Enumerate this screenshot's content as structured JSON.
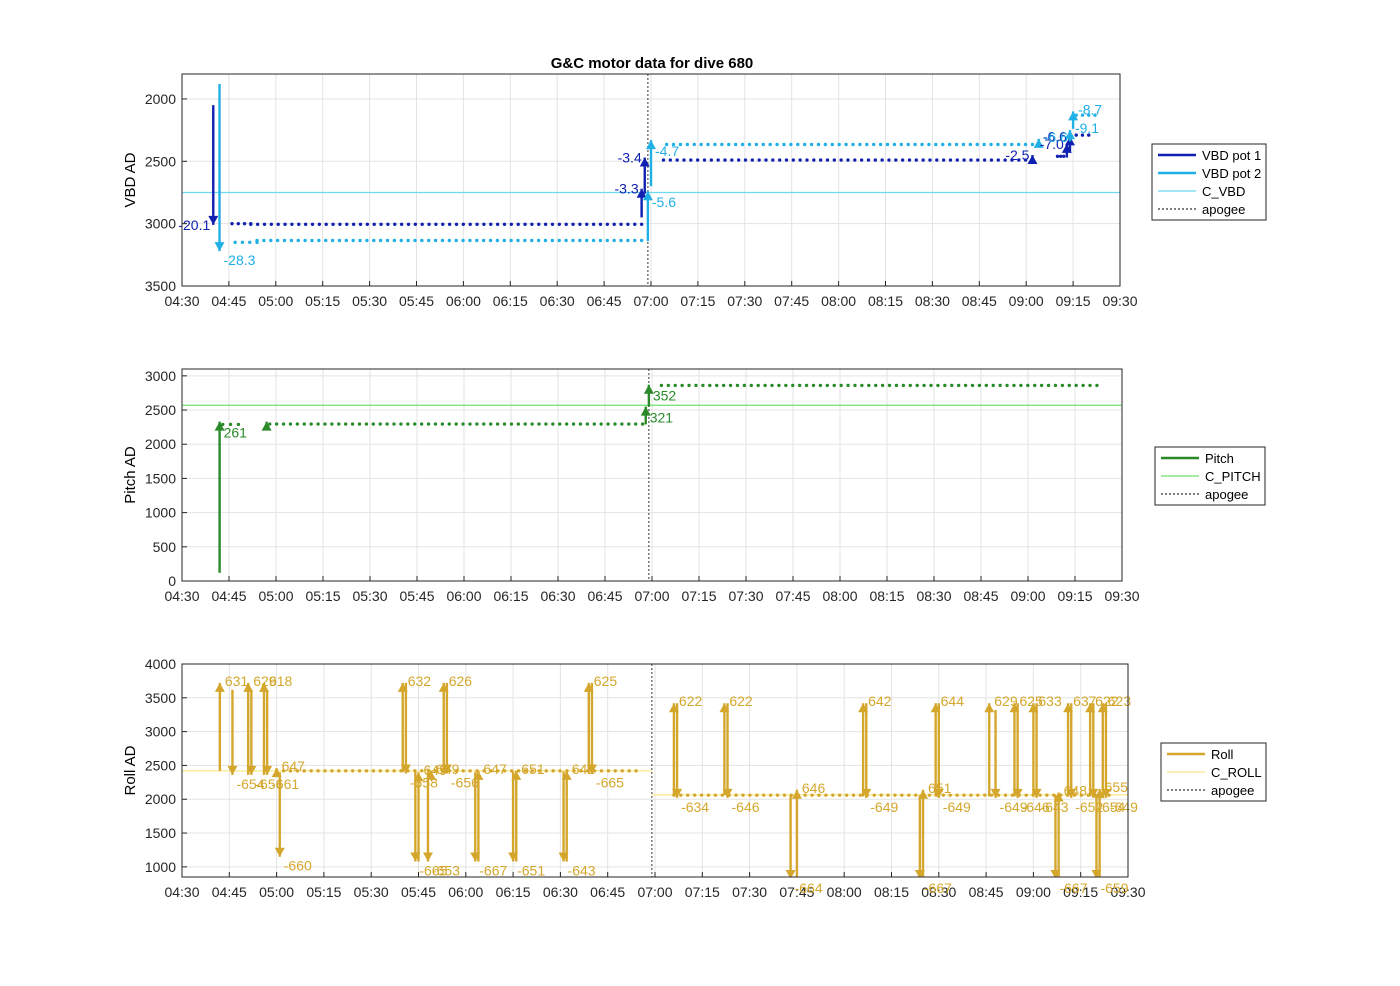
{
  "figure": {
    "title": "G&C motor data for dive 680"
  },
  "chart_data": [
    {
      "type": "line",
      "ylabel": "VBD AD",
      "xlim": [
        "04:30",
        "09:30"
      ],
      "xticks": [
        "04:30",
        "04:45",
        "05:00",
        "05:15",
        "05:30",
        "05:45",
        "06:00",
        "06:15",
        "06:30",
        "06:45",
        "07:00",
        "07:15",
        "07:30",
        "07:45",
        "08:00",
        "08:15",
        "08:30",
        "08:45",
        "09:00",
        "09:15",
        "09:30"
      ],
      "ylim": [
        1800,
        3500
      ],
      "yreverse": true,
      "yticks": [
        2000,
        2500,
        3000,
        3500
      ],
      "grid": true,
      "legend_position": "right",
      "apogee": "06:59",
      "refs": [
        {
          "name": "C_VBD",
          "y": 2750,
          "color": "#6fd8ee"
        }
      ],
      "series": [
        {
          "name": "VBD pot 1",
          "color": "#1020b0",
          "dots": [
            {
              "x0": "04:46",
              "x1": "04:52",
              "y": 3000
            },
            {
              "x0": "04:52",
              "x1": "06:57",
              "y": 3005
            },
            {
              "x0": "07:04",
              "x1": "09:02",
              "y": 2490
            },
            {
              "x0": "09:10",
              "x1": "09:12",
              "y": 2460
            },
            {
              "x0": "09:16",
              "x1": "09:20",
              "y": 2290
            }
          ],
          "moves": [
            {
              "t": "04:40",
              "from": 2050,
              "to": 3010,
              "label": "-20.1",
              "pos": "left"
            },
            {
              "t": "06:57",
              "from": 2950,
              "to": 2720,
              "label": "-3.3",
              "pos": "left"
            },
            {
              "t": "06:58",
              "from": 2760,
              "to": 2470,
              "label": "-3.4",
              "pos": "left"
            },
            {
              "t": "09:02",
              "from": 2490,
              "to": 2450,
              "label": "-2.5",
              "pos": "left"
            },
            {
              "t": "09:13",
              "from": 2470,
              "to": 2360,
              "label": "-7.0",
              "pos": "left"
            },
            {
              "t": "09:14",
              "from": 2420,
              "to": 2300,
              "label": "-6.6",
              "pos": "left"
            }
          ]
        },
        {
          "name": "VBD pot 2",
          "color": "#20b0e6",
          "dots": [
            {
              "x0": "04:47",
              "x1": "04:54",
              "y": 3150
            },
            {
              "x0": "04:54",
              "x1": "06:57",
              "y": 3135
            },
            {
              "x0": "07:05",
              "x1": "09:02",
              "y": 2365
            },
            {
              "x0": "09:16",
              "x1": "09:22",
              "y": 2130
            }
          ],
          "moves": [
            {
              "t": "04:42",
              "from": 1880,
              "to": 3220,
              "label": "-28.3",
              "pos": "below-right"
            },
            {
              "t": "06:59",
              "from": 3140,
              "to": 2740,
              "label": "-5.6",
              "pos": "below-right"
            },
            {
              "t": "07:00",
              "from": 2700,
              "to": 2330,
              "label": "-4.7",
              "pos": "below-right"
            },
            {
              "t": "09:04",
              "from": 2370,
              "to": 2320,
              "label": "-6.6",
              "pos": "right"
            },
            {
              "t": "09:14",
              "from": 2340,
              "to": 2250,
              "label": "-9.1",
              "pos": "right"
            },
            {
              "t": "09:15",
              "from": 2240,
              "to": 2100,
              "label": "-8.7",
              "pos": "right"
            }
          ]
        }
      ]
    },
    {
      "type": "line",
      "ylabel": "Pitch AD",
      "xlim": [
        "04:30",
        "09:30"
      ],
      "xticks": [
        "04:30",
        "04:45",
        "05:00",
        "05:15",
        "05:30",
        "05:45",
        "06:00",
        "06:15",
        "06:30",
        "06:45",
        "07:00",
        "07:15",
        "07:30",
        "07:45",
        "08:00",
        "08:15",
        "08:30",
        "08:45",
        "09:00",
        "09:15",
        "09:30"
      ],
      "ylim": [
        0,
        3100
      ],
      "yreverse": false,
      "yticks": [
        0,
        500,
        1000,
        1500,
        2000,
        2500,
        3000
      ],
      "grid": true,
      "legend_position": "right",
      "apogee": "06:59",
      "refs": [
        {
          "name": "C_PITCH",
          "y": 2570,
          "color": "#6ee06e"
        }
      ],
      "series": [
        {
          "name": "Pitch",
          "color": "#2a8a2a",
          "dots": [
            {
              "x0": "04:43",
              "x1": "04:48",
              "y": 2290
            },
            {
              "x0": "04:58",
              "x1": "06:57",
              "y": 2295
            },
            {
              "x0": "07:03",
              "x1": "09:22",
              "y": 2860
            }
          ],
          "moves": [
            {
              "t": "04:42",
              "from": 120,
              "to": 2330,
              "label": "261",
              "pos": "below-right"
            },
            {
              "t": "04:57",
              "from": 2300,
              "to": 2330,
              "label": "",
              "pos": "right"
            },
            {
              "t": "06:58",
              "from": 2290,
              "to": 2550,
              "label": "321",
              "pos": "below-right"
            },
            {
              "t": "06:59",
              "from": 2550,
              "to": 2870,
              "label": "352",
              "pos": "below-right"
            }
          ]
        }
      ]
    },
    {
      "type": "line",
      "ylabel": "Roll AD",
      "xlim": [
        "04:30",
        "09:30"
      ],
      "xticks": [
        "04:30",
        "04:45",
        "05:00",
        "05:15",
        "05:30",
        "05:45",
        "06:00",
        "06:15",
        "06:30",
        "06:45",
        "07:00",
        "07:15",
        "07:30",
        "07:45",
        "08:00",
        "08:15",
        "08:30",
        "08:45",
        "09:00",
        "09:15",
        "09:30"
      ],
      "ylim": [
        850,
        4000
      ],
      "yreverse": false,
      "yticks": [
        1000,
        1500,
        2000,
        2500,
        3000,
        3500,
        4000
      ],
      "grid": true,
      "legend_position": "right",
      "apogee": "06:59",
      "refs": [
        {
          "name": "C_ROLL",
          "y": 2420,
          "color": "#f8e88a",
          "x0": "04:30",
          "x1": "06:59"
        },
        {
          "name": "",
          "y": 2065,
          "color": "#f8e88a",
          "x0": "06:59",
          "x1": "09:30"
        }
      ],
      "series": [
        {
          "name": "Roll",
          "color": "#d4a72c",
          "dots": [
            {
              "x0": "05:00",
              "x1": "06:54",
              "y": 2420
            },
            {
              "x0": "07:06",
              "x1": "09:24",
              "y": 2060
            }
          ],
          "moves": [
            {
              "t": "04:42",
              "from": 2420,
              "to": 3720,
              "label": "631",
              "pos": "right"
            },
            {
              "t": "04:46",
              "from": 3620,
              "to": 2360,
              "label": "-654",
              "pos": "below-right"
            },
            {
              "t": "04:51",
              "from": 2360,
              "to": 3720,
              "label": "629",
              "pos": "right"
            },
            {
              "t": "04:52",
              "from": 3620,
              "to": 2360,
              "label": "-656",
              "pos": "below-right"
            },
            {
              "t": "04:56",
              "from": 2360,
              "to": 3720,
              "label": "618",
              "pos": "right"
            },
            {
              "t": "04:57",
              "from": 3620,
              "to": 2360,
              "label": "-661",
              "pos": "below-right"
            },
            {
              "t": "05:00",
              "from": 2400,
              "to": 2460,
              "label": "647",
              "pos": "right"
            },
            {
              "t": "05:01",
              "from": 2400,
              "to": 1150,
              "label": "-660",
              "pos": "below-right"
            },
            {
              "t": "05:40",
              "from": 2400,
              "to": 3720,
              "label": "632",
              "pos": "right"
            },
            {
              "t": "05:41",
              "from": 3720,
              "to": 2380,
              "label": "-658",
              "pos": "below-right"
            },
            {
              "t": "05:44",
              "from": 2410,
              "to": 1080,
              "label": "-665",
              "pos": "below-right"
            },
            {
              "t": "05:45",
              "from": 1080,
              "to": 2400,
              "label": "649",
              "pos": "right"
            },
            {
              "t": "05:48",
              "from": 2400,
              "to": 1080,
              "label": "-653",
              "pos": "below-right"
            },
            {
              "t": "05:49",
              "from": 2400,
              "to": 2420,
              "label": "649",
              "pos": "right"
            },
            {
              "t": "05:53",
              "from": 2380,
              "to": 3720,
              "label": "626",
              "pos": "right"
            },
            {
              "t": "05:54",
              "from": 3720,
              "to": 2380,
              "label": "-656",
              "pos": "below-right"
            },
            {
              "t": "06:03",
              "from": 2400,
              "to": 1080,
              "label": "-667",
              "pos": "below-right"
            },
            {
              "t": "06:04",
              "from": 1080,
              "to": 2420,
              "label": "647",
              "pos": "right"
            },
            {
              "t": "06:15",
              "from": 2410,
              "to": 1080,
              "label": "-651",
              "pos": "below-right"
            },
            {
              "t": "06:16",
              "from": 1080,
              "to": 2420,
              "label": "651",
              "pos": "right"
            },
            {
              "t": "06:31",
              "from": 2410,
              "to": 1080,
              "label": "-643",
              "pos": "below-right"
            },
            {
              "t": "06:32",
              "from": 1080,
              "to": 2420,
              "label": "642",
              "pos": "right"
            },
            {
              "t": "06:39",
              "from": 2400,
              "to": 3720,
              "label": "625",
              "pos": "right"
            },
            {
              "t": "06:40",
              "from": 3720,
              "to": 2380,
              "label": "-665",
              "pos": "below-right"
            },
            {
              "t": "07:06",
              "from": 2060,
              "to": 3420,
              "label": "622",
              "pos": "right"
            },
            {
              "t": "07:07",
              "from": 3420,
              "to": 2020,
              "label": "-634",
              "pos": "below-right"
            },
            {
              "t": "07:22",
              "from": 2060,
              "to": 3420,
              "label": "622",
              "pos": "right"
            },
            {
              "t": "07:23",
              "from": 3420,
              "to": 2020,
              "label": "-646",
              "pos": "below-right"
            },
            {
              "t": "07:43",
              "from": 2060,
              "to": 820,
              "label": "-664",
              "pos": "below-right"
            },
            {
              "t": "07:45",
              "from": 820,
              "to": 2140,
              "label": "646",
              "pos": "right"
            },
            {
              "t": "08:06",
              "from": 2040,
              "to": 3420,
              "label": "642",
              "pos": "right"
            },
            {
              "t": "08:07",
              "from": 3420,
              "to": 2020,
              "label": "-649",
              "pos": "below-right"
            },
            {
              "t": "08:24",
              "from": 2060,
              "to": 820,
              "label": "-667",
              "pos": "below-right"
            },
            {
              "t": "08:25",
              "from": 820,
              "to": 2140,
              "label": "651",
              "pos": "right"
            },
            {
              "t": "08:29",
              "from": 2040,
              "to": 3420,
              "label": "644",
              "pos": "right"
            },
            {
              "t": "08:30",
              "from": 3420,
              "to": 2020,
              "label": "-649",
              "pos": "below-right"
            },
            {
              "t": "08:46",
              "from": 2040,
              "to": 3420,
              "label": "629",
              "pos": "right"
            },
            {
              "t": "08:48",
              "from": 3320,
              "to": 2020,
              "label": "-649",
              "pos": "below-right"
            },
            {
              "t": "08:54",
              "from": 2040,
              "to": 3420,
              "label": "625",
              "pos": "right"
            },
            {
              "t": "08:55",
              "from": 3420,
              "to": 2020,
              "label": "-646",
              "pos": "below-right"
            },
            {
              "t": "09:00",
              "from": 2040,
              "to": 3420,
              "label": "633",
              "pos": "right"
            },
            {
              "t": "09:01",
              "from": 3420,
              "to": 2020,
              "label": "-643",
              "pos": "below-right"
            },
            {
              "t": "09:07",
              "from": 2060,
              "to": 820,
              "label": "-667",
              "pos": "below-right"
            },
            {
              "t": "09:08",
              "from": 820,
              "to": 2100,
              "label": "648",
              "pos": "right"
            },
            {
              "t": "09:11",
              "from": 2040,
              "to": 3420,
              "label": "637",
              "pos": "right"
            },
            {
              "t": "09:12",
              "from": 3420,
              "to": 2020,
              "label": "-652",
              "pos": "below-right"
            },
            {
              "t": "09:18",
              "from": 2040,
              "to": 3420,
              "label": "622",
              "pos": "right"
            },
            {
              "t": "09:19",
              "from": 3420,
              "to": 2020,
              "label": "-654",
              "pos": "below-right"
            },
            {
              "t": "09:20",
              "from": 2060,
              "to": 820,
              "label": "-659",
              "pos": "below-right"
            },
            {
              "t": "09:21",
              "from": 820,
              "to": 2150,
              "label": "655",
              "pos": "right"
            },
            {
              "t": "09:22",
              "from": 2040,
              "to": 3420,
              "label": "623",
              "pos": "right"
            },
            {
              "t": "09:23",
              "from": 3420,
              "to": 2020,
              "label": "-649",
              "pos": "below-right"
            }
          ]
        }
      ]
    }
  ],
  "legends": [
    {
      "items": [
        {
          "label": "VBD pot 1",
          "color": "#1020b0",
          "style": "thick"
        },
        {
          "label": "VBD pot 2",
          "color": "#20b0e6",
          "style": "thick"
        },
        {
          "label": "C_VBD",
          "color": "#6fd8ee",
          "style": "thin"
        },
        {
          "label": "apogee",
          "color": "#555555",
          "style": "dotted"
        }
      ]
    },
    {
      "items": [
        {
          "label": "Pitch",
          "color": "#2a8a2a",
          "style": "thick"
        },
        {
          "label": "C_PITCH",
          "color": "#6ee06e",
          "style": "thin"
        },
        {
          "label": "apogee",
          "color": "#555555",
          "style": "dotted"
        }
      ]
    },
    {
      "items": [
        {
          "label": "Roll",
          "color": "#d4a72c",
          "style": "thick"
        },
        {
          "label": "C_ROLL",
          "color": "#f8e88a",
          "style": "thin"
        },
        {
          "label": "apogee",
          "color": "#555555",
          "style": "dotted"
        }
      ]
    }
  ]
}
